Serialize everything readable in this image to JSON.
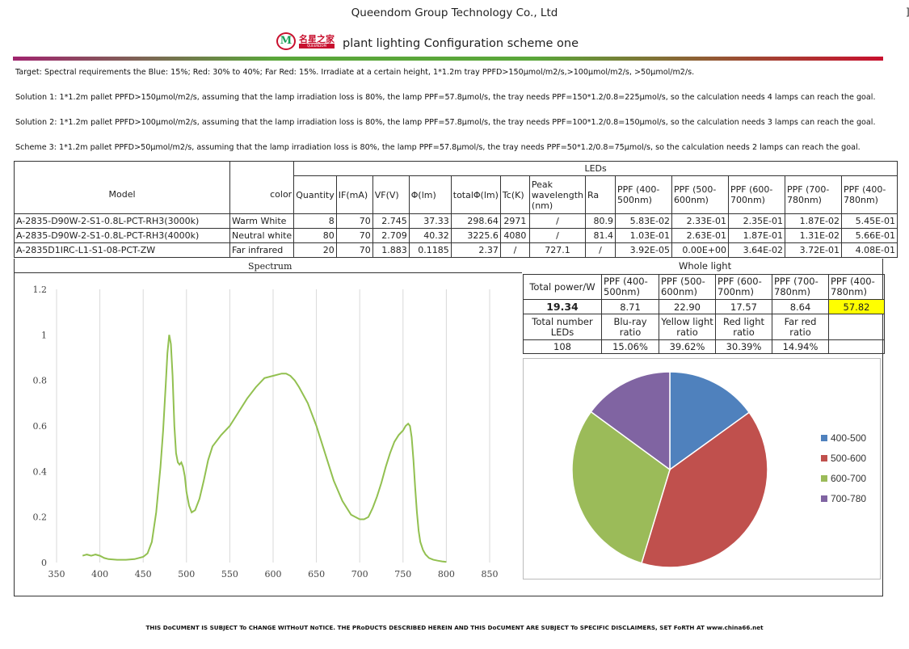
{
  "header": {
    "company": "Queendom Group Technology Co., Ltd",
    "edge_mark": "]",
    "logo_text": "名星之家",
    "logo_sub": "QUEENDOM",
    "subtitle": "plant lighting Configuration scheme one",
    "bar_colors": [
      "#a0246e",
      "#5aa63a",
      "#c8102e"
    ]
  },
  "paragraphs": [
    "Target: Spectral requirements the Blue: 15%; Red: 30% to 40%; Far Red: 15%. Irradiate at a certain height, 1*1.2m tray PPFD>150μmol/m2/s,>100μmol/m2/s, >50μmol/m2/s.",
    "Solution 1: 1*1.2m pallet PPFD>150μmol/m2/s, assuming that the lamp irradiation loss is 80%, the lamp PPF=57.8μmol/s, the tray needs PPF=150*1.2/0.8=225μmol/s, so the calculation needs 4 lamps can reach the goal.",
    "Solution 2: 1*1.2m pallet PPFD>100μmol/m2/s, assuming that the lamp irradiation loss is 80%, the lamp PPF=57.8μmol/s, the tray needs PPF=100*1.2/0.8=150μmol/s, so the calculation needs 3 lamps can reach the goal.",
    "Scheme 3: 1*1.2m pallet PPFD>50μmol/m2/s, assuming that the lamp irradiation loss is 80%, the lamp PPF=57.8μmol/s, the tray needs PPF=50*1.2/0.8=75μmol/s, so the calculation needs 2 lamps can reach the goal."
  ],
  "leds_table": {
    "group_title": "LEDs",
    "headers": [
      "Model",
      "color",
      "Quantity",
      "IF(mA)",
      "VF(V)",
      "Φ(lm)",
      "totalΦ(lm)",
      "Tc(K)",
      "Peak wavelength (nm)",
      "Ra",
      "PPF (400-500nm)",
      "PPF (500-600nm)",
      "PPF (600-700nm)",
      "PPF (700-780nm)",
      "PPF (400-780nm)"
    ],
    "rows": [
      [
        "A-2835-D90W-2-S1-0.8L-PCT-RH3(3000k)",
        "Warm White",
        "8",
        "70",
        "2.745",
        "37.33",
        "298.64",
        "2971",
        "/",
        "80.9",
        "5.83E-02",
        "2.33E-01",
        "2.35E-01",
        "1.87E-02",
        "5.45E-01"
      ],
      [
        "A-2835-D90W-2-S1-0.8L-PCT-RH3(4000k)",
        "Neutral white",
        "80",
        "70",
        "2.709",
        "40.32",
        "3225.6",
        "4080",
        "/",
        "81.4",
        "1.03E-01",
        "2.63E-01",
        "1.87E-01",
        "1.31E-02",
        "5.66E-01"
      ],
      [
        "A-2835D1IRC-L1-S1-08-PCT-ZW",
        "Far infrared",
        "20",
        "70",
        "1.883",
        "0.1185",
        "2.37",
        "/",
        "727.1",
        "/",
        "3.92E-05",
        "0.00E+00",
        "3.64E-02",
        "3.72E-01",
        "4.08E-01"
      ]
    ]
  },
  "spectrum": {
    "title": "Spectrum"
  },
  "whole_light": {
    "title": "Whole light",
    "row1": [
      "Total power/W",
      "PPF (400-500nm)",
      "PPF (500-600nm)",
      "PPF (600-700nm)",
      "PPF (700-780nm)",
      "PPF (400-780nm)"
    ],
    "row2": [
      "19.34",
      "8.71",
      "22.90",
      "17.57",
      "8.64",
      "57.82"
    ],
    "row3": [
      "Total number LEDs",
      "Blu-ray ratio",
      "Yellow light ratio",
      "Red light ratio",
      "Far red ratio",
      ""
    ],
    "row4": [
      "108",
      "15.06%",
      "39.62%",
      "30.39%",
      "14.94%",
      ""
    ],
    "highlight_color": "#ffff00"
  },
  "chart_data": [
    {
      "type": "line",
      "title": "Spectrum",
      "xlabel": "",
      "ylabel": "",
      "xlim": [
        350,
        850
      ],
      "ylim": [
        0,
        1.2
      ],
      "xticks": [
        "350",
        "400",
        "450",
        "500",
        "550",
        "600",
        "650",
        "700",
        "750",
        "800",
        "850"
      ],
      "yticks": [
        "0",
        "0.2",
        "0.4",
        "0.6",
        "0.8",
        "1",
        "1.2"
      ],
      "grid": "vertical",
      "color": "#92c050",
      "x": [
        380,
        385,
        390,
        395,
        400,
        405,
        410,
        420,
        430,
        440,
        450,
        455,
        460,
        465,
        470,
        473,
        476,
        478,
        480,
        482,
        484,
        486,
        488,
        490,
        492,
        494,
        496,
        498,
        500,
        503,
        506,
        510,
        515,
        520,
        525,
        530,
        540,
        550,
        560,
        570,
        580,
        590,
        600,
        610,
        615,
        620,
        625,
        630,
        640,
        650,
        660,
        670,
        680,
        690,
        700,
        705,
        710,
        715,
        720,
        725,
        730,
        735,
        740,
        745,
        750,
        753,
        756,
        758,
        760,
        762,
        764,
        766,
        768,
        770,
        773,
        776,
        780,
        785,
        790,
        795,
        800
      ],
      "y": [
        0.03,
        0.035,
        0.03,
        0.035,
        0.03,
        0.02,
        0.015,
        0.012,
        0.012,
        0.015,
        0.025,
        0.04,
        0.09,
        0.22,
        0.42,
        0.58,
        0.78,
        0.92,
        1.0,
        0.96,
        0.82,
        0.6,
        0.48,
        0.44,
        0.43,
        0.44,
        0.42,
        0.38,
        0.31,
        0.25,
        0.22,
        0.23,
        0.28,
        0.36,
        0.45,
        0.51,
        0.56,
        0.6,
        0.66,
        0.72,
        0.77,
        0.81,
        0.82,
        0.83,
        0.83,
        0.82,
        0.8,
        0.77,
        0.7,
        0.6,
        0.48,
        0.36,
        0.27,
        0.21,
        0.19,
        0.19,
        0.2,
        0.24,
        0.29,
        0.35,
        0.42,
        0.48,
        0.53,
        0.56,
        0.58,
        0.6,
        0.61,
        0.6,
        0.55,
        0.45,
        0.33,
        0.22,
        0.14,
        0.09,
        0.055,
        0.035,
        0.02,
        0.012,
        0.008,
        0.005,
        0.003
      ]
    },
    {
      "type": "pie",
      "categories": [
        "400-500",
        "500-600",
        "600-700",
        "700-780"
      ],
      "values": [
        15.06,
        39.62,
        30.39,
        14.94
      ],
      "colors": [
        "#4f81bd",
        "#c0504d",
        "#9bbb59",
        "#8064a2"
      ],
      "legend": "right"
    }
  ],
  "footer": "THIS DoCUMENT IS SUBJECT To CHANGE WITHoUT NoTICE. THE PRoDUCTS DESCRIBED HEREIN AND THIS DoCUMENT ARE SUBJECT To SPECIFIC DISCLAIMERS, SET FoRTH AT www.china66.net"
}
